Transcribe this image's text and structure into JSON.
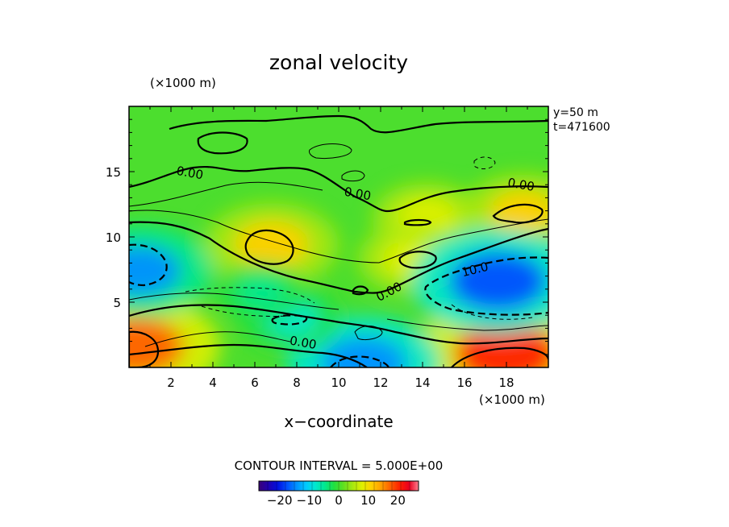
{
  "chart_data": {
    "type": "heatmap",
    "title": "zonal velocity",
    "xlabel": "x−coordinate",
    "x_unit": "(×1000 m)",
    "y_unit": "(×1000 m)",
    "xlim": [
      0,
      20
    ],
    "ylim": [
      0,
      20
    ],
    "x_ticks": [
      2,
      4,
      6,
      8,
      10,
      12,
      14,
      16,
      18
    ],
    "y_ticks": [
      5,
      10,
      15
    ],
    "x_tick_labels": [
      "2",
      "4",
      "6",
      "8",
      "10",
      "12",
      "14",
      "16",
      "18"
    ],
    "y_tick_labels": [
      "5",
      "10",
      "15"
    ],
    "info": [
      "y=50 m",
      "t=471600"
    ],
    "contour_interval_text": "CONTOUR INTERVAL = 5.000E+00",
    "contour_labels": [
      {
        "text": "0.00",
        "x": 2.9,
        "y": 14.9
      },
      {
        "text": "0.00",
        "x": 10.9,
        "y": 13.3
      },
      {
        "text": "0.00",
        "x": 18.7,
        "y": 14.0
      },
      {
        "text": "10.0",
        "x": 16.5,
        "y": 7.5
      },
      {
        "text": "0.00",
        "x": 12.4,
        "y": 5.8
      },
      {
        "text": "0.00",
        "x": 8.3,
        "y": 1.9
      }
    ],
    "colorbar": {
      "range": [
        -27,
        27
      ],
      "ticks": [
        -20,
        -10,
        0,
        10,
        20
      ],
      "tick_labels": [
        "−20",
        "−10",
        "0",
        "10",
        "20"
      ],
      "colors": [
        "#3a0078",
        "#2000b0",
        "#0010e0",
        "#0050ff",
        "#0090ff",
        "#00c8ff",
        "#00e8d0",
        "#00e890",
        "#20e040",
        "#60e020",
        "#a8e810",
        "#e0f000",
        "#ffd000",
        "#ffa000",
        "#ff6000",
        "#ff2000",
        "#e80020",
        "#ff8090"
      ]
    },
    "features": [
      {
        "kind": "max",
        "x": 6.8,
        "y": 9.4,
        "value": 12
      },
      {
        "kind": "max",
        "x": 0.4,
        "y": 1.6,
        "value": 17
      },
      {
        "kind": "max",
        "x": 18.0,
        "y": 1.0,
        "value": 20
      },
      {
        "kind": "max",
        "x": 14.2,
        "y": 11.5,
        "value": 8
      },
      {
        "kind": "max",
        "x": 18.8,
        "y": 11.9,
        "value": 10
      },
      {
        "kind": "max",
        "x": 13.5,
        "y": 8.3,
        "value": 8
      },
      {
        "kind": "min",
        "x": 17.6,
        "y": 6.6,
        "value": -18
      },
      {
        "kind": "min",
        "x": 0.5,
        "y": 7.4,
        "value": -14
      },
      {
        "kind": "min",
        "x": 11.2,
        "y": 0.3,
        "value": -15
      },
      {
        "kind": "min",
        "x": 7.7,
        "y": 3.8,
        "value": -7
      },
      {
        "kind": "min",
        "x": 6.3,
        "y": 5.8,
        "value": -5
      }
    ]
  }
}
